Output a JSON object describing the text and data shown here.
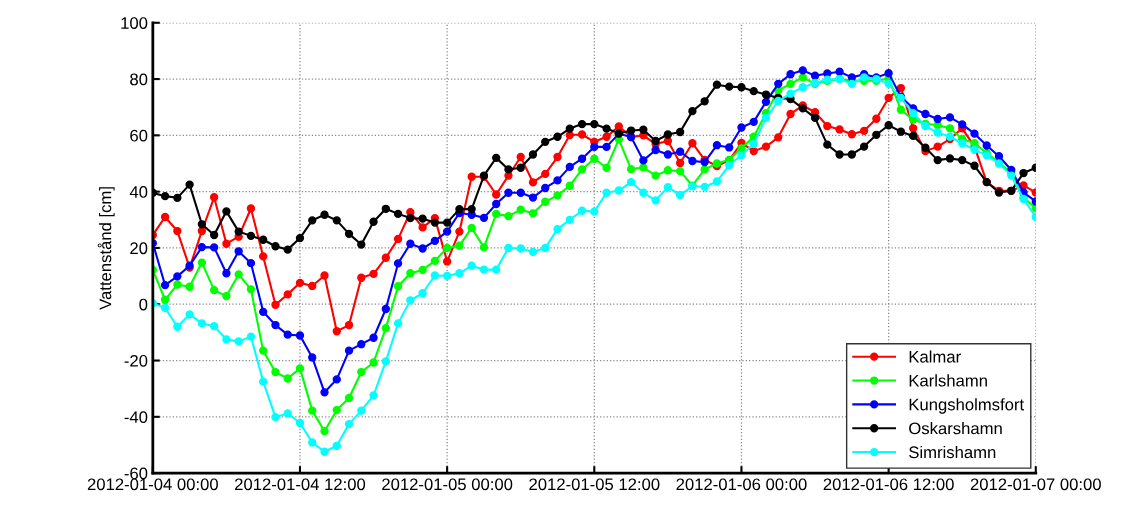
{
  "chart_data": {
    "type": "line",
    "ylabel": "Vattenstånd [cm]",
    "x": [
      "2012-01-04T00:00",
      "2012-01-04T01:00",
      "2012-01-04T02:00",
      "2012-01-04T03:00",
      "2012-01-04T04:00",
      "2012-01-04T05:00",
      "2012-01-04T06:00",
      "2012-01-04T07:00",
      "2012-01-04T08:00",
      "2012-01-04T09:00",
      "2012-01-04T10:00",
      "2012-01-04T11:00",
      "2012-01-04T12:00",
      "2012-01-04T13:00",
      "2012-01-04T14:00",
      "2012-01-04T15:00",
      "2012-01-04T16:00",
      "2012-01-04T17:00",
      "2012-01-04T18:00",
      "2012-01-04T19:00",
      "2012-01-04T20:00",
      "2012-01-04T21:00",
      "2012-01-04T22:00",
      "2012-01-04T23:00",
      "2012-01-05T00:00",
      "2012-01-05T01:00",
      "2012-01-05T02:00",
      "2012-01-05T03:00",
      "2012-01-05T04:00",
      "2012-01-05T05:00",
      "2012-01-05T06:00",
      "2012-01-05T07:00",
      "2012-01-05T08:00",
      "2012-01-05T09:00",
      "2012-01-05T10:00",
      "2012-01-05T11:00",
      "2012-01-05T12:00",
      "2012-01-05T13:00",
      "2012-01-05T14:00",
      "2012-01-05T15:00",
      "2012-01-05T16:00",
      "2012-01-05T17:00",
      "2012-01-05T18:00",
      "2012-01-05T19:00",
      "2012-01-05T20:00",
      "2012-01-05T21:00",
      "2012-01-05T22:00",
      "2012-01-05T23:00",
      "2012-01-06T00:00",
      "2012-01-06T01:00",
      "2012-01-06T02:00",
      "2012-01-06T03:00",
      "2012-01-06T04:00",
      "2012-01-06T05:00",
      "2012-01-06T06:00",
      "2012-01-06T07:00",
      "2012-01-06T08:00",
      "2012-01-06T09:00",
      "2012-01-06T10:00",
      "2012-01-06T11:00",
      "2012-01-06T12:00",
      "2012-01-06T13:00",
      "2012-01-06T14:00",
      "2012-01-06T15:00",
      "2012-01-06T16:00",
      "2012-01-06T17:00",
      "2012-01-06T18:00",
      "2012-01-06T19:00",
      "2012-01-06T20:00",
      "2012-01-06T21:00",
      "2012-01-06T22:00",
      "2012-01-06T23:00",
      "2012-01-07T00:00"
    ],
    "series": [
      {
        "name": "Kalmar",
        "color": "#ff0000",
        "values": [
          24.6,
          31,
          26,
          13,
          26,
          38,
          21.5,
          24,
          34,
          17,
          -0.2,
          3.5,
          7.6,
          6.5,
          10.2,
          -9.6,
          -7.4,
          9.4,
          10.8,
          16.5,
          23.2,
          32.7,
          27.3,
          30.6,
          15.2,
          25.8,
          45.3,
          45.3,
          39,
          45.7,
          52.3,
          43.3,
          46.3,
          52.3,
          60.1,
          60.3,
          57.7,
          59.5,
          63.2,
          59.4,
          60,
          56.9,
          58,
          50.2,
          57.2,
          51.3,
          49.1,
          51.1,
          57.3,
          54.4,
          56,
          59.3,
          67.6,
          70.6,
          68.2,
          63.3,
          62.1,
          60.4,
          61.6,
          65.9,
          73.3,
          76.8,
          62.5,
          54.4,
          56,
          58.7,
          62.5,
          56,
          43.4,
          40.3,
          40.3,
          42.2,
          39.7
        ]
      },
      {
        "name": "Karlshamn",
        "color": "#00ff00",
        "values": [
          12.2,
          1.6,
          7,
          6.2,
          14.8,
          5,
          2.9,
          10.6,
          5.3,
          -16.5,
          -24.1,
          -26.4,
          -22.8,
          -37.8,
          -45.1,
          -37.6,
          -33.3,
          -24.1,
          -20.7,
          -8.5,
          6.4,
          11,
          12.2,
          15.4,
          20,
          20.8,
          27.1,
          20.2,
          32.1,
          31.3,
          33.6,
          32.3,
          36.4,
          38.7,
          42.1,
          47.9,
          51.7,
          48.5,
          58.6,
          48,
          48.6,
          45.7,
          47.6,
          47.3,
          42.1,
          47.9,
          50,
          51.3,
          55.4,
          59.5,
          67.9,
          76,
          78.3,
          80.6,
          78.3,
          79.4,
          80,
          79.4,
          79.4,
          79.4,
          80.2,
          69.1,
          65.6,
          64.1,
          63.6,
          62.5,
          58.7,
          57.2,
          53.7,
          50.3,
          46.6,
          37.9,
          34.1
        ]
      },
      {
        "name": "Kungsholmsfort",
        "color": "#0000ff",
        "values": [
          21.7,
          6.8,
          9.9,
          13.7,
          20.3,
          20.2,
          11,
          18.8,
          14.6,
          -2.7,
          -7.4,
          -10.8,
          -11.1,
          -18.9,
          -31.3,
          -26.7,
          -16.5,
          -14.2,
          -11.9,
          -1.7,
          14.5,
          21.5,
          19.8,
          22.5,
          25.8,
          32.4,
          31.8,
          30.7,
          35.6,
          39.6,
          39.6,
          37.9,
          41.3,
          44,
          48.8,
          51.7,
          55.9,
          55.9,
          60.6,
          59.4,
          51.1,
          54.8,
          53.2,
          54.2,
          50.9,
          50.5,
          56.5,
          55.7,
          62.8,
          64.8,
          71.9,
          78.3,
          81.7,
          83.1,
          81.2,
          82,
          82.6,
          80.6,
          81.7,
          80.6,
          82.1,
          73.7,
          69.6,
          67.6,
          65.8,
          66.4,
          63.9,
          60.6,
          56.4,
          52.6,
          47.7,
          39.7,
          36.5
        ]
      },
      {
        "name": "Oskarshamn",
        "color": "#000000",
        "values": [
          39.6,
          38.4,
          37.8,
          42.5,
          28.4,
          24.6,
          33,
          25.8,
          24.3,
          22.9,
          20.6,
          19.4,
          23.5,
          29.8,
          31.8,
          29.8,
          25,
          21.2,
          29.3,
          33.9,
          32.1,
          30.6,
          30.4,
          29,
          29,
          33.8,
          33.8,
          45.7,
          52,
          47.9,
          48.5,
          53.2,
          57.7,
          59.5,
          62.4,
          64,
          64,
          62.4,
          60.7,
          61.7,
          62,
          58,
          60.3,
          61.2,
          68.6,
          72.1,
          78,
          77.3,
          77.1,
          75.7,
          74.5,
          73.3,
          72.9,
          69.6,
          66.2,
          56.7,
          53.2,
          53.2,
          56,
          60.2,
          63.6,
          61.3,
          59.8,
          55.6,
          51.2,
          51.8,
          51.2,
          49.2,
          43.4,
          39.7,
          40.3,
          46.6,
          48.5
        ]
      },
      {
        "name": "Simrishamn",
        "color": "#00ffff",
        "values": [
          0.4,
          -1.3,
          -8,
          -3.6,
          -6.8,
          -7.8,
          -12.5,
          -13.2,
          -11.5,
          -27.5,
          -40.1,
          -38.8,
          -42.2,
          -49.1,
          -52.4,
          -50.3,
          -42.6,
          -37.8,
          -32.4,
          -20.3,
          -6.8,
          1.4,
          3.9,
          10.2,
          10.1,
          11,
          13.7,
          12.3,
          12.3,
          20,
          19.8,
          18.6,
          20,
          26.7,
          30,
          33.2,
          32.9,
          39.6,
          40.4,
          43.4,
          39.6,
          36.9,
          41.6,
          38.8,
          41.9,
          41.7,
          43.6,
          49.4,
          53,
          57,
          66.2,
          72.2,
          74.8,
          77.1,
          78.6,
          79.8,
          80,
          78.3,
          80.6,
          80,
          78.3,
          73.3,
          67.9,
          63.3,
          61,
          59.5,
          57.2,
          54.9,
          52.9,
          50,
          45.7,
          37.4,
          31
        ]
      }
    ],
    "xlim": [
      "2012-01-04T00:00",
      "2012-01-07T00:00"
    ],
    "xticks": [
      {
        "value": "2012-01-04T00:00",
        "label": "2012-01-04 00:00"
      },
      {
        "value": "2012-01-04T12:00",
        "label": "2012-01-04 12:00"
      },
      {
        "value": "2012-01-05T00:00",
        "label": "2012-01-05 00:00"
      },
      {
        "value": "2012-01-05T12:00",
        "label": "2012-01-05 12:00"
      },
      {
        "value": "2012-01-06T00:00",
        "label": "2012-01-06 00:00"
      },
      {
        "value": "2012-01-06T12:00",
        "label": "2012-01-06 12:00"
      },
      {
        "value": "2012-01-07T00:00",
        "label": "2012-01-07 00:00"
      }
    ],
    "ylim": [
      -60,
      100
    ],
    "yticks": [
      -60,
      -40,
      -20,
      0,
      20,
      40,
      60,
      80,
      100
    ],
    "grid": true,
    "legend": "bottom right",
    "marker": "circle",
    "line_style": "solid"
  }
}
